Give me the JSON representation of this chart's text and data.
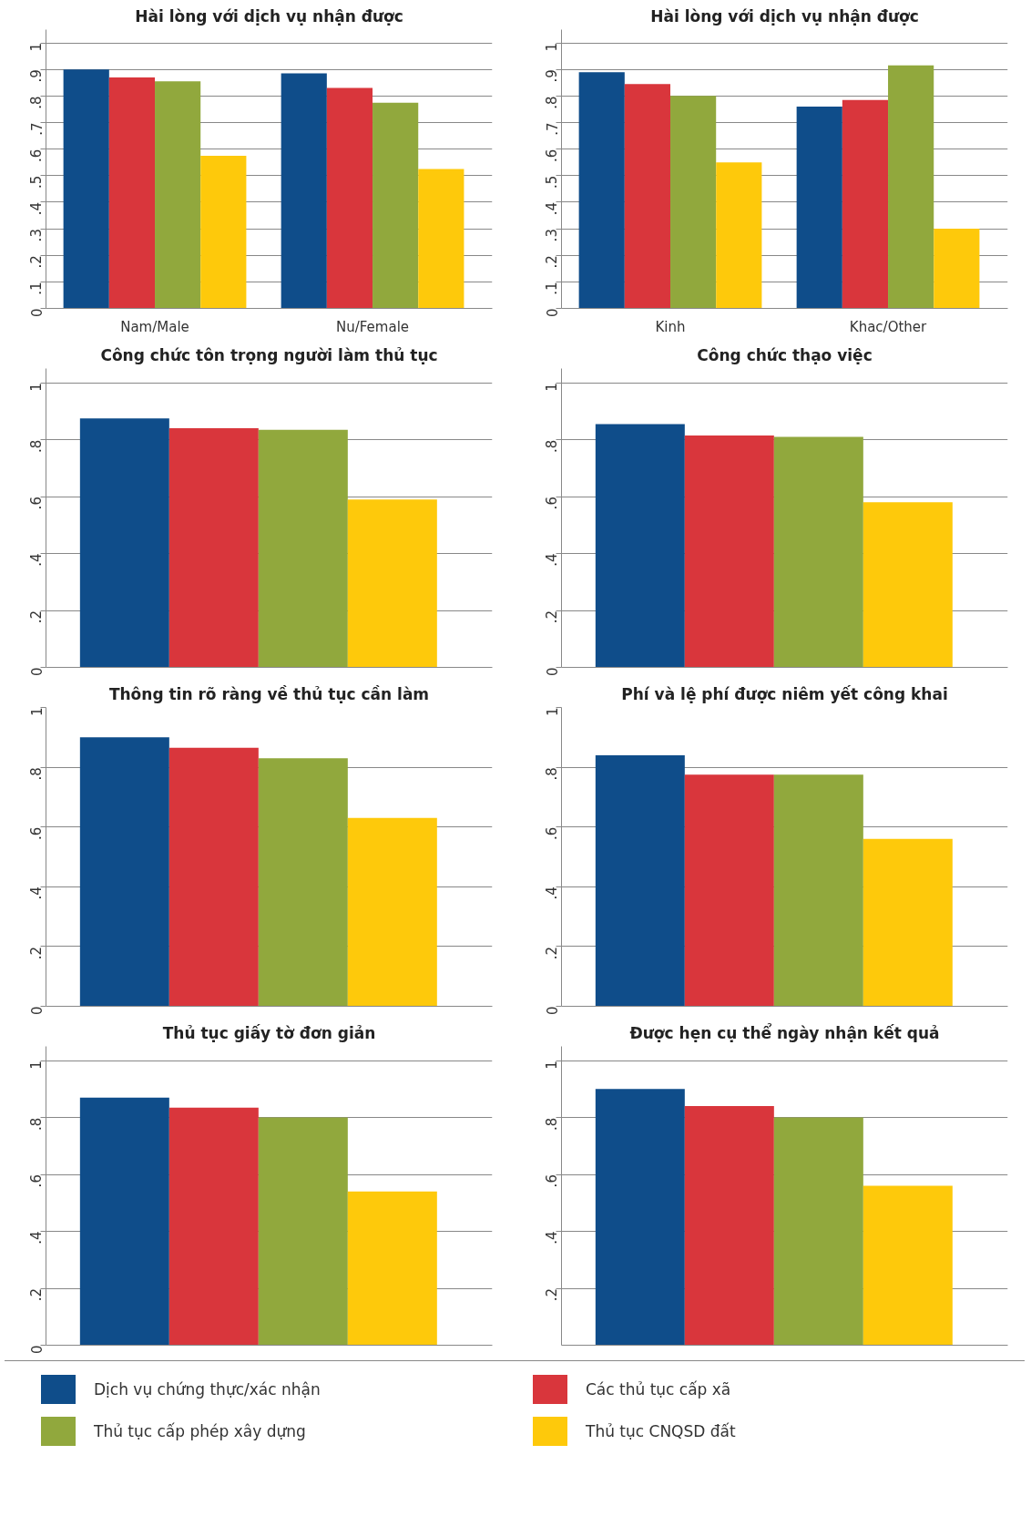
{
  "chart_data": [
    {
      "type": "bar",
      "title": "Hài lòng với dịch vụ nhận được",
      "categories": [
        "Nam/Male",
        "Nu/Female"
      ],
      "ylim": [
        0,
        1.05
      ],
      "yticks": [
        {
          "value": 0,
          "label": "0"
        },
        {
          "value": 0.1,
          "label": ".1"
        },
        {
          "value": 0.2,
          "label": ".2"
        },
        {
          "value": 0.3,
          "label": ".3"
        },
        {
          "value": 0.4,
          "label": ".4"
        },
        {
          "value": 0.5,
          "label": ".5"
        },
        {
          "value": 0.6,
          "label": ".6"
        },
        {
          "value": 0.7,
          "label": ".7"
        },
        {
          "value": 0.8,
          "label": ".8"
        },
        {
          "value": 0.9,
          "label": ".9"
        },
        {
          "value": 1,
          "label": "1"
        }
      ],
      "grid": "y",
      "legend": "bottom",
      "series": [
        {
          "name": "Dịch vụ chứng thực/xác nhận",
          "color": "#0f4d8a",
          "values": [
            0.9,
            0.885
          ]
        },
        {
          "name": "Các thủ tục cấp xã",
          "color": "#d9363c",
          "values": [
            0.87,
            0.83
          ]
        },
        {
          "name": "Thủ tục cấp phép xây dựng",
          "color": "#91a83d",
          "values": [
            0.855,
            0.775
          ]
        },
        {
          "name": "Thủ tục CNQSD đất",
          "color": "#fec90b",
          "values": [
            0.575,
            0.525
          ]
        }
      ]
    },
    {
      "type": "bar",
      "title": "Hài lòng với dịch vụ nhận được",
      "categories": [
        "Kinh",
        "Khac/Other"
      ],
      "ylim": [
        0,
        1.05
      ],
      "yticks": [
        {
          "value": 0,
          "label": "0"
        },
        {
          "value": 0.1,
          "label": ".1"
        },
        {
          "value": 0.2,
          "label": ".2"
        },
        {
          "value": 0.3,
          "label": ".3"
        },
        {
          "value": 0.4,
          "label": ".4"
        },
        {
          "value": 0.5,
          "label": ".5"
        },
        {
          "value": 0.6,
          "label": ".6"
        },
        {
          "value": 0.7,
          "label": ".7"
        },
        {
          "value": 0.8,
          "label": ".8"
        },
        {
          "value": 0.9,
          "label": ".9"
        },
        {
          "value": 1,
          "label": "1"
        }
      ],
      "grid": "y",
      "series": [
        {
          "color": "#0f4d8a",
          "values": [
            0.89,
            0.76
          ]
        },
        {
          "color": "#d9363c",
          "values": [
            0.845,
            0.785
          ]
        },
        {
          "color": "#91a83d",
          "values": [
            0.8,
            0.915
          ]
        },
        {
          "color": "#fec90b",
          "values": [
            0.55,
            0.3
          ]
        }
      ]
    },
    {
      "type": "bar",
      "title": "Công chức tôn trọng người làm thủ tục",
      "categories": [
        null
      ],
      "ylim": [
        0,
        1.05
      ],
      "yticks": [
        {
          "value": 0,
          "label": "0"
        },
        {
          "value": 0.2,
          "label": ".2"
        },
        {
          "value": 0.4,
          "label": ".4"
        },
        {
          "value": 0.6,
          "label": ".6"
        },
        {
          "value": 0.8,
          "label": ".8"
        },
        {
          "value": 1,
          "label": "1"
        }
      ],
      "grid": "y",
      "series": [
        {
          "color": "#0f4d8a",
          "values": [
            0.875
          ]
        },
        {
          "color": "#d9363c",
          "values": [
            0.84
          ]
        },
        {
          "color": "#91a83d",
          "values": [
            0.835
          ]
        },
        {
          "color": "#fec90b",
          "values": [
            0.59
          ]
        }
      ]
    },
    {
      "type": "bar",
      "title": "Công chức thạo việc",
      "categories": [
        null
      ],
      "ylim": [
        0,
        1.05
      ],
      "yticks": [
        {
          "value": 0,
          "label": "0"
        },
        {
          "value": 0.2,
          "label": ".2"
        },
        {
          "value": 0.4,
          "label": ".4"
        },
        {
          "value": 0.6,
          "label": ".6"
        },
        {
          "value": 0.8,
          "label": ".8"
        },
        {
          "value": 1,
          "label": "1"
        }
      ],
      "grid": "y",
      "series": [
        {
          "color": "#0f4d8a",
          "values": [
            0.855
          ]
        },
        {
          "color": "#d9363c",
          "values": [
            0.815
          ]
        },
        {
          "color": "#91a83d",
          "values": [
            0.81
          ]
        },
        {
          "color": "#fec90b",
          "values": [
            0.58
          ]
        }
      ]
    },
    {
      "type": "bar",
      "title": "Thông tin rõ ràng về thủ tục cần làm",
      "categories": [
        null
      ],
      "ylim": [
        0,
        1.0
      ],
      "yticks": [
        {
          "value": 0,
          "label": "0"
        },
        {
          "value": 0.2,
          "label": ".2"
        },
        {
          "value": 0.4,
          "label": ".4"
        },
        {
          "value": 0.6,
          "label": ".6"
        },
        {
          "value": 0.8,
          "label": ".8"
        },
        {
          "value": 1,
          "label": "1"
        }
      ],
      "grid": "y",
      "series": [
        {
          "color": "#0f4d8a",
          "values": [
            0.9
          ]
        },
        {
          "color": "#d9363c",
          "values": [
            0.865
          ]
        },
        {
          "color": "#91a83d",
          "values": [
            0.83
          ]
        },
        {
          "color": "#fec90b",
          "values": [
            0.63
          ]
        }
      ]
    },
    {
      "type": "bar",
      "title": "Phí và lệ phí được niêm yết công khai",
      "categories": [
        null
      ],
      "ylim": [
        0,
        1.0
      ],
      "yticks": [
        {
          "value": 0,
          "label": "0"
        },
        {
          "value": 0.2,
          "label": ".2"
        },
        {
          "value": 0.4,
          "label": ".4"
        },
        {
          "value": 0.6,
          "label": ".6"
        },
        {
          "value": 0.8,
          "label": ".8"
        },
        {
          "value": 1,
          "label": "1"
        }
      ],
      "grid": "y",
      "series": [
        {
          "color": "#0f4d8a",
          "values": [
            0.84
          ]
        },
        {
          "color": "#d9363c",
          "values": [
            0.775
          ]
        },
        {
          "color": "#91a83d",
          "values": [
            0.775
          ]
        },
        {
          "color": "#fec90b",
          "values": [
            0.56
          ]
        }
      ]
    },
    {
      "type": "bar",
      "title": "Thủ tục giấy tờ đơn giản",
      "categories": [
        null
      ],
      "ylim": [
        0,
        1.05
      ],
      "yticks": [
        {
          "value": 0,
          "label": "0"
        },
        {
          "value": 0.2,
          "label": ".2"
        },
        {
          "value": 0.4,
          "label": ".4"
        },
        {
          "value": 0.6,
          "label": ".6"
        },
        {
          "value": 0.8,
          "label": ".8"
        },
        {
          "value": 1,
          "label": "1"
        }
      ],
      "grid": "y",
      "series": [
        {
          "color": "#0f4d8a",
          "values": [
            0.87
          ]
        },
        {
          "color": "#d9363c",
          "values": [
            0.835
          ]
        },
        {
          "color": "#91a83d",
          "values": [
            0.8
          ]
        },
        {
          "color": "#fec90b",
          "values": [
            0.54
          ]
        }
      ]
    },
    {
      "type": "bar",
      "title": "Được hẹn cụ thể ngày nhận kết quả",
      "categories": [
        null
      ],
      "ylim": [
        0,
        1.05
      ],
      "yticks": [
        {
          "value": 0.2,
          "label": ".2"
        },
        {
          "value": 0.4,
          "label": ".4"
        },
        {
          "value": 0.6,
          "label": ".6"
        },
        {
          "value": 0.8,
          "label": ".8"
        },
        {
          "value": 1,
          "label": "1"
        }
      ],
      "grid": "y",
      "series": [
        {
          "color": "#0f4d8a",
          "values": [
            0.9
          ]
        },
        {
          "color": "#d9363c",
          "values": [
            0.84
          ]
        },
        {
          "color": "#91a83d",
          "values": [
            0.8
          ]
        },
        {
          "color": "#fec90b",
          "values": [
            0.56
          ]
        }
      ]
    }
  ]
}
